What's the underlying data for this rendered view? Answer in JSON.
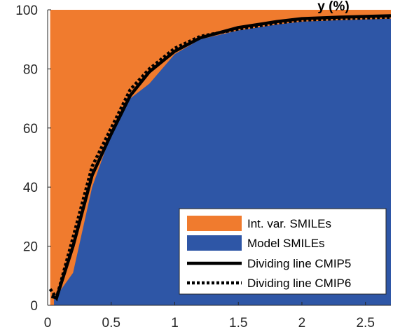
{
  "chart_data": {
    "type": "area",
    "title": "y (%)",
    "xlabel": "",
    "ylabel": "",
    "xlim": [
      0,
      2.7
    ],
    "ylim": [
      0,
      100
    ],
    "xticks": [
      0,
      0.5,
      1,
      1.5,
      2,
      2.5
    ],
    "xtick_labels": [
      "0",
      "0.5",
      "1",
      "1.5",
      "2",
      "2.5"
    ],
    "yticks": [
      0,
      20,
      40,
      60,
      80,
      100
    ],
    "ytick_labels": [
      "0",
      "20",
      "40",
      "60",
      "80",
      "100"
    ],
    "grid": false,
    "legend_position": "bottom-right",
    "series": [
      {
        "name": "Int. var. SMILEs",
        "kind": "area",
        "color": "#f07b2e",
        "baseline": "model",
        "top": 100
      },
      {
        "name": "Model SMILEs",
        "kind": "area",
        "color": "#2e56a6",
        "x": [
          0.05,
          0.2,
          0.35,
          0.5,
          0.65,
          0.8,
          1.0,
          1.2,
          1.5,
          1.8,
          2.0,
          2.3,
          2.7
        ],
        "values": [
          2,
          11,
          40,
          58,
          70,
          75,
          85,
          90,
          93,
          95,
          96,
          96.5,
          97
        ]
      },
      {
        "name": "Dividing line CMIP5",
        "kind": "line",
        "style": "solid",
        "color": "#000000",
        "x": [
          0.03,
          0.07,
          0.2,
          0.35,
          0.5,
          0.65,
          0.8,
          1.0,
          1.2,
          1.5,
          1.8,
          2.0,
          2.3,
          2.7
        ],
        "values": [
          3,
          2.5,
          20,
          44,
          58,
          71,
          79,
          86,
          90.5,
          94,
          96,
          97,
          97.5,
          98
        ]
      },
      {
        "name": "Dividing line CMIP6",
        "kind": "line",
        "style": "dotted",
        "color": "#000000",
        "x": [
          0.02,
          0.07,
          0.2,
          0.35,
          0.5,
          0.65,
          0.8,
          1.0,
          1.2,
          1.5,
          1.8,
          2.0,
          2.3,
          2.7
        ],
        "values": [
          5.5,
          2.5,
          23,
          47,
          60,
          73,
          80,
          87,
          91,
          93.5,
          95.5,
          96.5,
          97,
          97.5
        ]
      }
    ]
  }
}
